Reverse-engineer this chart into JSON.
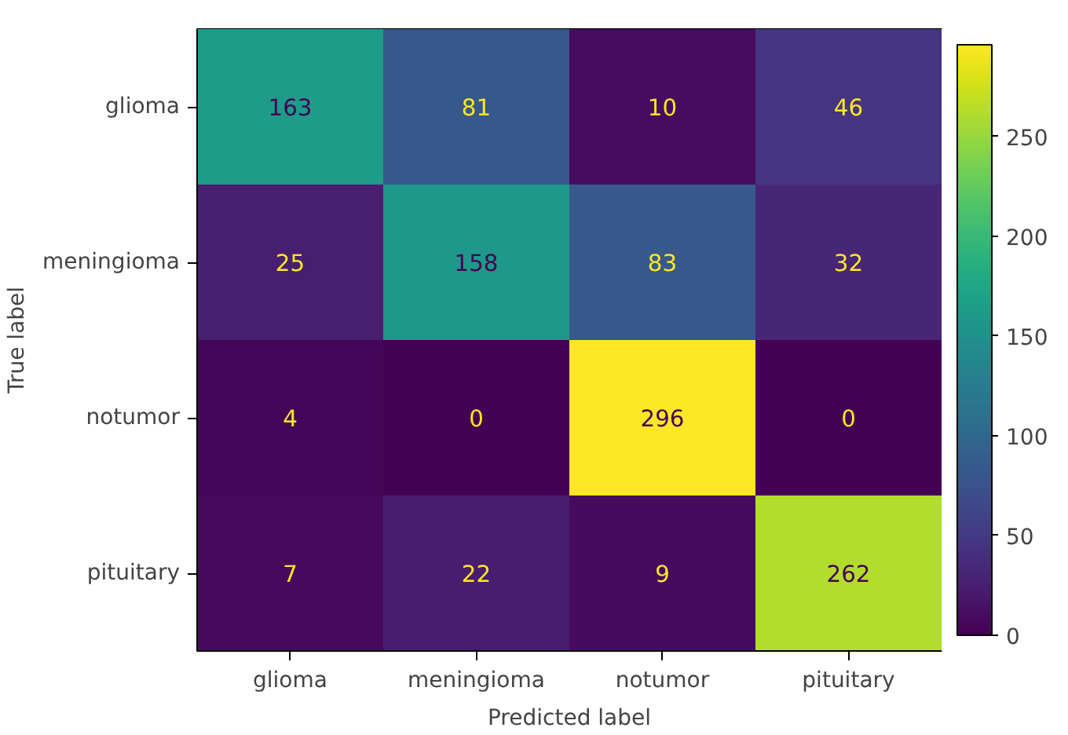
{
  "chart_data": {
    "type": "heatmap",
    "xlabel": "Predicted label",
    "ylabel": "True label",
    "categories": [
      "glioma",
      "meningioma",
      "notumor",
      "pituitary"
    ],
    "y_categories": [
      "glioma",
      "meningioma",
      "notumor",
      "pituitary"
    ],
    "cells": [
      [
        163,
        81,
        10,
        46
      ],
      [
        25,
        158,
        83,
        32
      ],
      [
        4,
        0,
        296,
        0
      ],
      [
        7,
        22,
        9,
        262
      ]
    ],
    "clim": [
      0,
      296
    ],
    "cticks": [
      0,
      50,
      100,
      150,
      200,
      250
    ],
    "data_labels": true
  }
}
